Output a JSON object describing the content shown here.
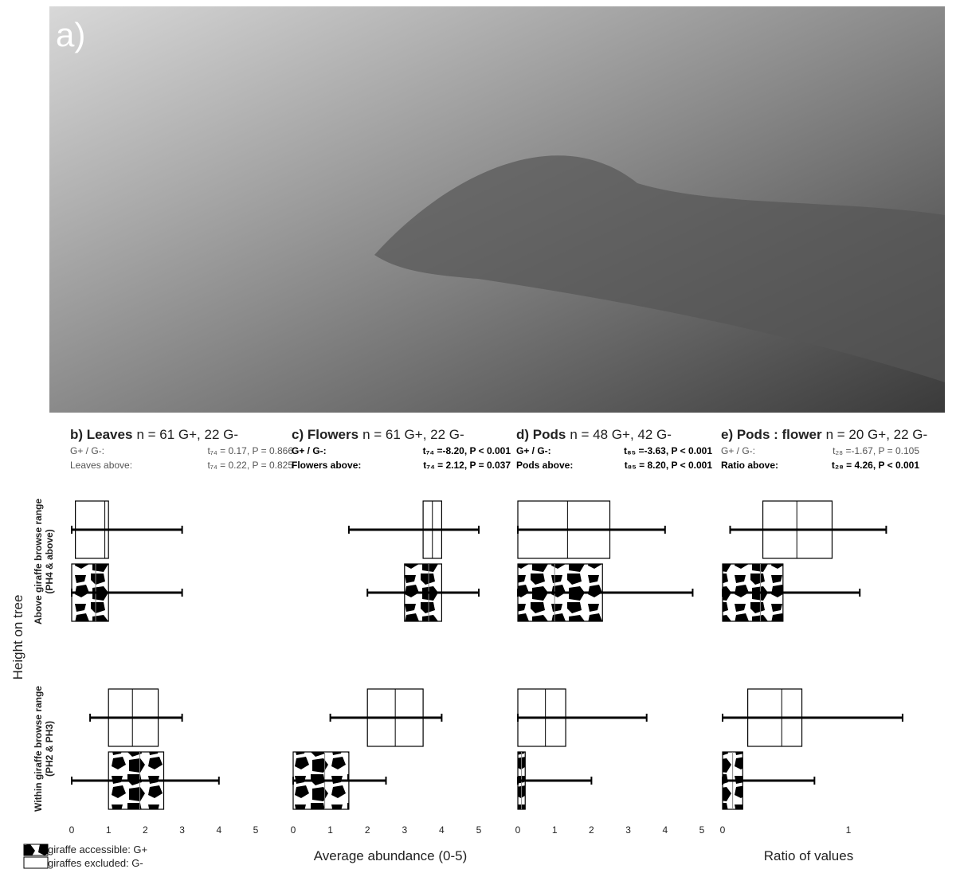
{
  "panel_a": {
    "label": "a)"
  },
  "y_axis_label": "Height on tree",
  "groups": [
    [
      "Above giraffe browse range",
      "(PH4 & above)"
    ],
    [
      "Within giraffe browse range",
      "(PH2 & PH3)"
    ]
  ],
  "x_axis_labels": [
    "Average abundance (0-5)",
    "Ratio of values"
  ],
  "legend": [
    "giraffe accessible: G+",
    "giraffes excluded: G-"
  ],
  "chart_data": [
    {
      "type": "box",
      "title": "b) Leaves",
      "subtitle": "n = 61 G+, 22 G-",
      "stats": [
        {
          "label": "G+ / G-:",
          "text": "t₇₄ = 0.17, P = 0.866",
          "bold": false
        },
        {
          "label": "Leaves above:",
          "text": "t₇₄ = 0.22, P = 0.825",
          "bold": false
        }
      ],
      "xlim": [
        0,
        5
      ],
      "xticks": [
        0,
        1,
        2,
        3,
        4,
        5
      ],
      "boxes": [
        [
          0,
          0.1,
          0.9,
          1,
          3
        ],
        [
          0,
          0,
          0.65,
          1,
          3
        ],
        [
          0.5,
          1,
          1.65,
          2.35,
          3
        ],
        [
          0,
          1,
          1.85,
          2.5,
          4
        ]
      ]
    },
    {
      "type": "box",
      "title": "c) Flowers",
      "subtitle": "n = 61 G+, 22 G-",
      "stats": [
        {
          "label": "G+ / G-:",
          "text": "t₇₄ =-8.20, P < 0.001",
          "bold": true
        },
        {
          "label": "Flowers above:",
          "text": "t₇₄ = 2.12, P = 0.037",
          "bold": true
        }
      ],
      "xlim": [
        0,
        5
      ],
      "xticks": [
        0,
        1,
        2,
        3,
        4,
        5
      ],
      "boxes": [
        [
          1.5,
          3.5,
          3.75,
          4,
          5
        ],
        [
          2,
          3,
          3.65,
          4,
          5
        ],
        [
          1,
          2,
          2.75,
          3.5,
          4
        ],
        [
          0,
          0,
          0.85,
          1.5,
          2.5
        ]
      ]
    },
    {
      "type": "box",
      "title": "d) Pods",
      "subtitle": "n = 48 G+, 42 G-",
      "stats": [
        {
          "label": "G+ / G-:",
          "text": "t₈₅ =-3.63, P < 0.001",
          "bold": true
        },
        {
          "label": "Pods above:",
          "text": "t₈₅ = 8.20, P < 0.001",
          "bold": true
        }
      ],
      "xlim": [
        0,
        5
      ],
      "xticks": [
        0,
        1,
        2,
        3,
        4,
        5
      ],
      "boxes": [
        [
          0,
          0,
          1.35,
          2.5,
          4
        ],
        [
          0,
          0,
          1,
          2.3,
          4.75
        ],
        [
          0,
          0,
          0.75,
          1.3,
          3.5
        ],
        [
          0,
          0,
          0.1,
          0.2,
          2
        ]
      ]
    },
    {
      "type": "box",
      "title": "e) Pods : flower",
      "subtitle": "n = 20 G+, 22 G-",
      "stats": [
        {
          "label": "G+ / G-:",
          "text": "t₂₈ =-1.67, P = 0.105",
          "bold": false
        },
        {
          "label": "Ratio above:",
          "text": "t₂₈ = 4.26, P < 0.001",
          "bold": true
        }
      ],
      "xlim": [
        0,
        1.5
      ],
      "xticks": [
        0,
        1
      ],
      "boxes": [
        [
          0.06,
          0.32,
          0.59,
          0.87,
          1.3
        ],
        [
          0,
          0,
          0.3,
          0.48,
          1.09
        ],
        [
          0,
          0.2,
          0.47,
          0.63,
          1.43
        ],
        [
          0,
          0,
          0.08,
          0.16,
          0.73
        ]
      ]
    }
  ]
}
